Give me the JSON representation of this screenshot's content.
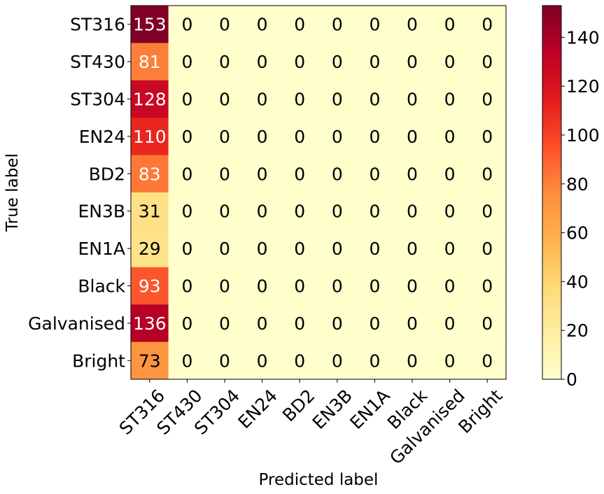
{
  "chart_data": {
    "type": "heatmap",
    "title": "",
    "xlabel": "Predicted label",
    "ylabel": "True label",
    "row_labels": [
      "ST316",
      "ST430",
      "ST304",
      "EN24",
      "BD2",
      "EN3B",
      "EN1A",
      "Black",
      "Galvanised",
      "Bright"
    ],
    "col_labels": [
      "ST316",
      "ST430",
      "ST304",
      "EN24",
      "BD2",
      "EN3B",
      "EN1A",
      "Black",
      "Galvanised",
      "Bright"
    ],
    "matrix": [
      [
        153,
        0,
        0,
        0,
        0,
        0,
        0,
        0,
        0,
        0
      ],
      [
        81,
        0,
        0,
        0,
        0,
        0,
        0,
        0,
        0,
        0
      ],
      [
        128,
        0,
        0,
        0,
        0,
        0,
        0,
        0,
        0,
        0
      ],
      [
        110,
        0,
        0,
        0,
        0,
        0,
        0,
        0,
        0,
        0
      ],
      [
        83,
        0,
        0,
        0,
        0,
        0,
        0,
        0,
        0,
        0
      ],
      [
        31,
        0,
        0,
        0,
        0,
        0,
        0,
        0,
        0,
        0
      ],
      [
        29,
        0,
        0,
        0,
        0,
        0,
        0,
        0,
        0,
        0
      ],
      [
        93,
        0,
        0,
        0,
        0,
        0,
        0,
        0,
        0,
        0
      ],
      [
        136,
        0,
        0,
        0,
        0,
        0,
        0,
        0,
        0,
        0
      ],
      [
        73,
        0,
        0,
        0,
        0,
        0,
        0,
        0,
        0,
        0
      ]
    ],
    "colormap": "YlOrRd",
    "colorbar": {
      "range": [
        0,
        153
      ],
      "ticks": [
        "0",
        "20",
        "40",
        "60",
        "80",
        "100",
        "120",
        "140"
      ]
    }
  }
}
